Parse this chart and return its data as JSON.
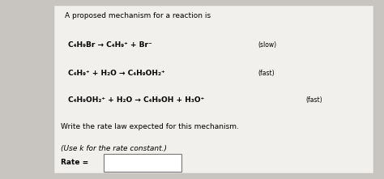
{
  "bg_left_color": "#2a2a2a",
  "bg_right_color": "#c8c5c0",
  "panel_color": "#f2f0ed",
  "title": "A proposed mechanism for a reaction is",
  "line1": "C₄H₉Br → C₄H₉⁺ + Br⁻",
  "line1_label": "(slow)",
  "line2": "C₄H₉⁺ + H₂O → C₄H₉OH₂⁺",
  "line2_label": "(fast)",
  "line3": "C₄H₉OH₂⁺ + H₂O → C₄H₉OH + H₃O⁺",
  "line3_label": "(fast)",
  "prompt1": "Write the rate law expected for this mechanism.",
  "prompt2": "(Use k for the rate constant.)",
  "rate_label": "Rate =",
  "title_fontsize": 6.5,
  "body_fontsize": 6.5,
  "label_fontsize": 5.5,
  "prompt_fontsize": 6.5,
  "rate_fontsize": 6.5
}
